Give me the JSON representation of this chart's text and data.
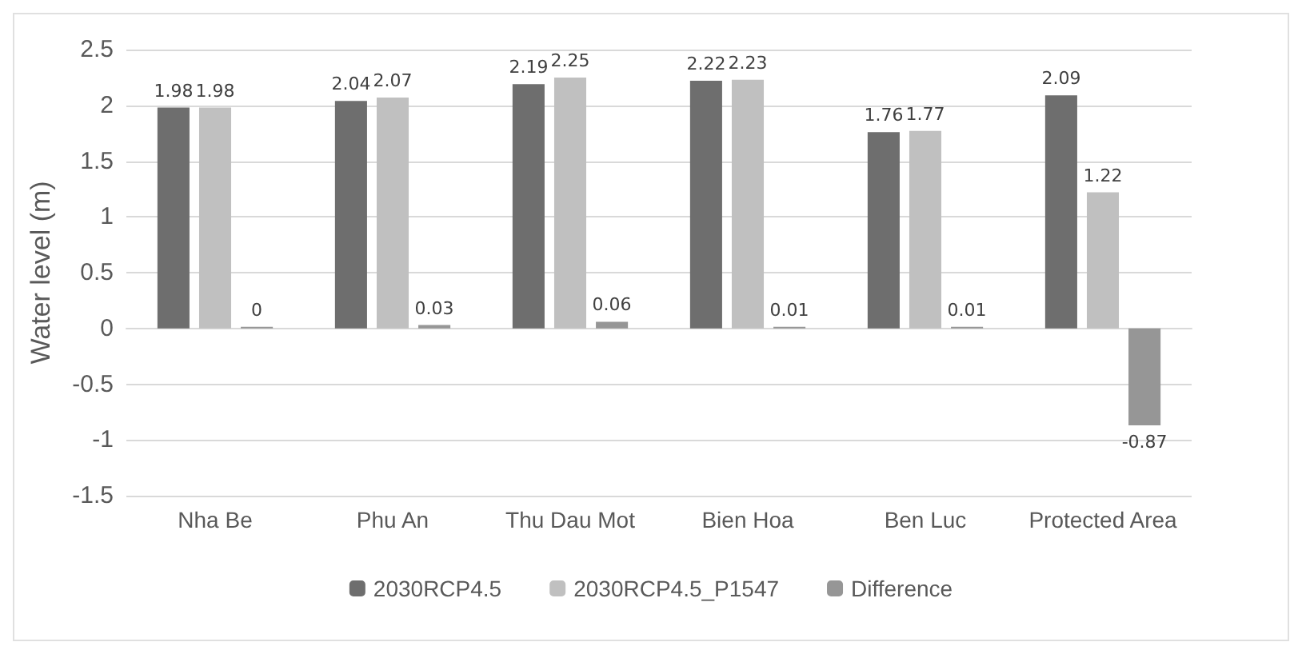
{
  "chart_data": {
    "type": "bar",
    "ylabel": "Water level (m)",
    "categories": [
      "Nha Be",
      "Phu An",
      "Thu Dau Mot",
      "Bien Hoa",
      "Ben Luc",
      "Protected Area"
    ],
    "series": [
      {
        "name": "2030RCP4.5",
        "color": "#6e6e6e",
        "values": [
          1.98,
          2.04,
          2.19,
          2.22,
          1.76,
          2.09
        ]
      },
      {
        "name": "2030RCP4.5_P1547",
        "color": "#c0c0c0",
        "values": [
          1.98,
          2.07,
          2.25,
          2.23,
          1.77,
          1.22
        ]
      },
      {
        "name": "Difference",
        "color": "#969696",
        "values": [
          0,
          0.03,
          0.06,
          0.01,
          0.01,
          -0.87
        ]
      }
    ],
    "ylim": [
      -1.5,
      2.5
    ],
    "yticks": [
      -1.5,
      -1,
      -0.5,
      0,
      0.5,
      1,
      1.5,
      2,
      2.5
    ],
    "grid": "y",
    "legend": "bottom",
    "data_labels": true
  }
}
